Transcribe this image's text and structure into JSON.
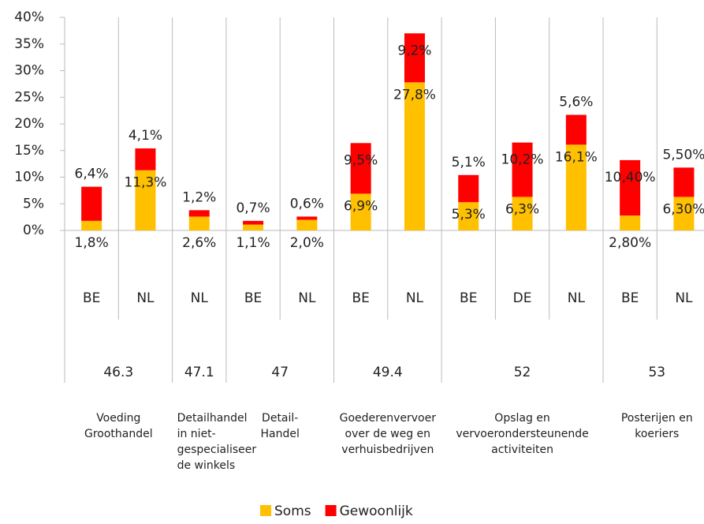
{
  "chart_data": {
    "type": "stacked_bar",
    "categories": [
      "BE",
      "NL",
      "NL",
      "BE",
      "NL",
      "BE",
      "NL",
      "BE",
      "DE",
      "NL",
      "BE",
      "NL"
    ],
    "groups": [
      {
        "code": "46.3",
        "span": 2,
        "description": [
          "Voeding",
          "Groothandel"
        ]
      },
      {
        "code": "47.1",
        "span": 1,
        "description": [
          "Detailhandel",
          "in niet-",
          "gespecialiseer",
          "de winkels"
        ]
      },
      {
        "code": "47",
        "span": 2,
        "description": [
          "Detail-",
          "Handel"
        ]
      },
      {
        "code": "49.4",
        "span": 2,
        "description": [
          "Goederenvervoer",
          "over de weg en",
          "verhuisbedrijven"
        ]
      },
      {
        "code": "52",
        "span": 3,
        "description": [
          "Opslag en",
          "vervoerondersteunende",
          "activiteiten"
        ]
      },
      {
        "code": "53",
        "span": 2,
        "description": [
          "Posterijen en",
          "koeriers"
        ]
      }
    ],
    "series": [
      {
        "name": "Soms",
        "color": "#ffc000",
        "values": [
          1.8,
          11.3,
          2.6,
          1.1,
          2.0,
          6.9,
          27.8,
          5.3,
          6.3,
          16.1,
          2.8,
          6.3
        ],
        "value_labels": [
          "1,8%",
          "11,3%",
          "2,6%",
          "1,1%",
          "2,0%",
          "6,9%",
          "27,8%",
          "5,3%",
          "6,3%",
          "16,1%",
          "2,80%",
          "6,30%"
        ]
      },
      {
        "name": "Gewoonlijk",
        "color": "#ff0000",
        "values": [
          6.4,
          4.1,
          1.2,
          0.7,
          0.6,
          9.5,
          9.2,
          5.1,
          10.2,
          5.6,
          10.4,
          5.5
        ],
        "value_labels": [
          "6,4%",
          "4,1%",
          "1,2%",
          "0,7%",
          "0,6%",
          "9,5%",
          "9,2%",
          "5,1%",
          "10,2%",
          "5,6%",
          "10,40%",
          "5,50%"
        ]
      }
    ],
    "ylim": [
      0,
      40
    ],
    "yticks": [
      {
        "value": 0,
        "label": "0%"
      },
      {
        "value": 5,
        "label": "5%"
      },
      {
        "value": 10,
        "label": "10%"
      },
      {
        "value": 15,
        "label": "15%"
      },
      {
        "value": 20,
        "label": "20%"
      },
      {
        "value": 25,
        "label": "25%"
      },
      {
        "value": 30,
        "label": "30%"
      },
      {
        "value": 35,
        "label": "35%"
      },
      {
        "value": 40,
        "label": "40%"
      }
    ],
    "legend": "bottom"
  }
}
